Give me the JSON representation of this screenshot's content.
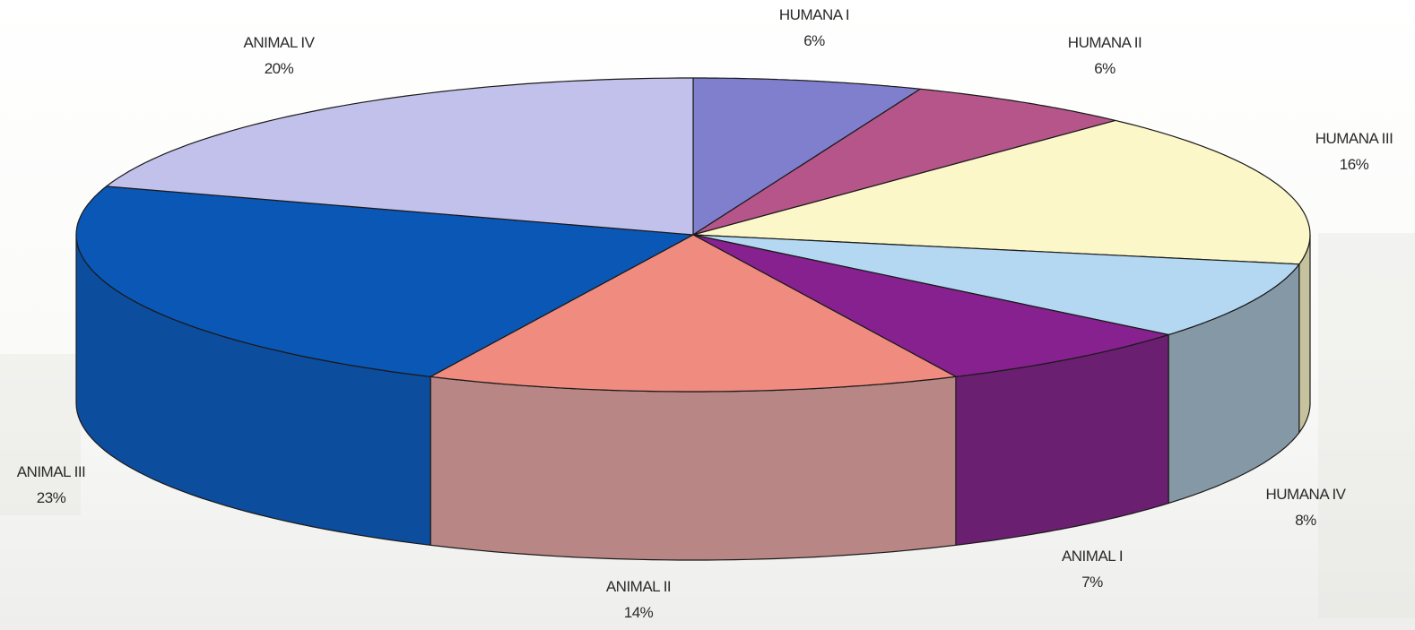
{
  "chart_data": {
    "type": "pie",
    "title": "",
    "style": "3d-exploded-none",
    "slices": [
      {
        "name": "HUMANA I",
        "label": "HUMANA I",
        "percent_label": "6%",
        "value": 6,
        "color": "#7f7fce",
        "side": "#5e5e9c"
      },
      {
        "name": "HUMANA II",
        "label": "HUMANA II",
        "percent_label": "6%",
        "value": 6,
        "color": "#b5558a",
        "side": "#87406a"
      },
      {
        "name": "HUMANA III",
        "label": "HUMANA III",
        "percent_label": "16%",
        "value": 16,
        "color": "#fbf7c9",
        "side": "#c6c29d"
      },
      {
        "name": "HUMANA IV",
        "label": "HUMANA IV",
        "percent_label": "8%",
        "value": 8,
        "color": "#b4d8f2",
        "side": "#8498a6"
      },
      {
        "name": "ANIMAL I",
        "label": "ANIMAL I",
        "percent_label": "7%",
        "value": 7,
        "color": "#86218f",
        "side": "#6b1f70"
      },
      {
        "name": "ANIMAL II",
        "label": "ANIMAL II",
        "percent_label": "14%",
        "value": 14,
        "color": "#f08b80",
        "side": "#b98686"
      },
      {
        "name": "ANIMAL III",
        "label": "ANIMAL III",
        "percent_label": "23%",
        "value": 23,
        "color": "#0a57b5",
        "side": "#0c4d9e"
      },
      {
        "name": "ANIMAL IV",
        "label": "ANIMAL IV",
        "percent_label": "20%",
        "value": 20,
        "color": "#c2c1eb",
        "side": "#9e9dc8"
      }
    ]
  }
}
